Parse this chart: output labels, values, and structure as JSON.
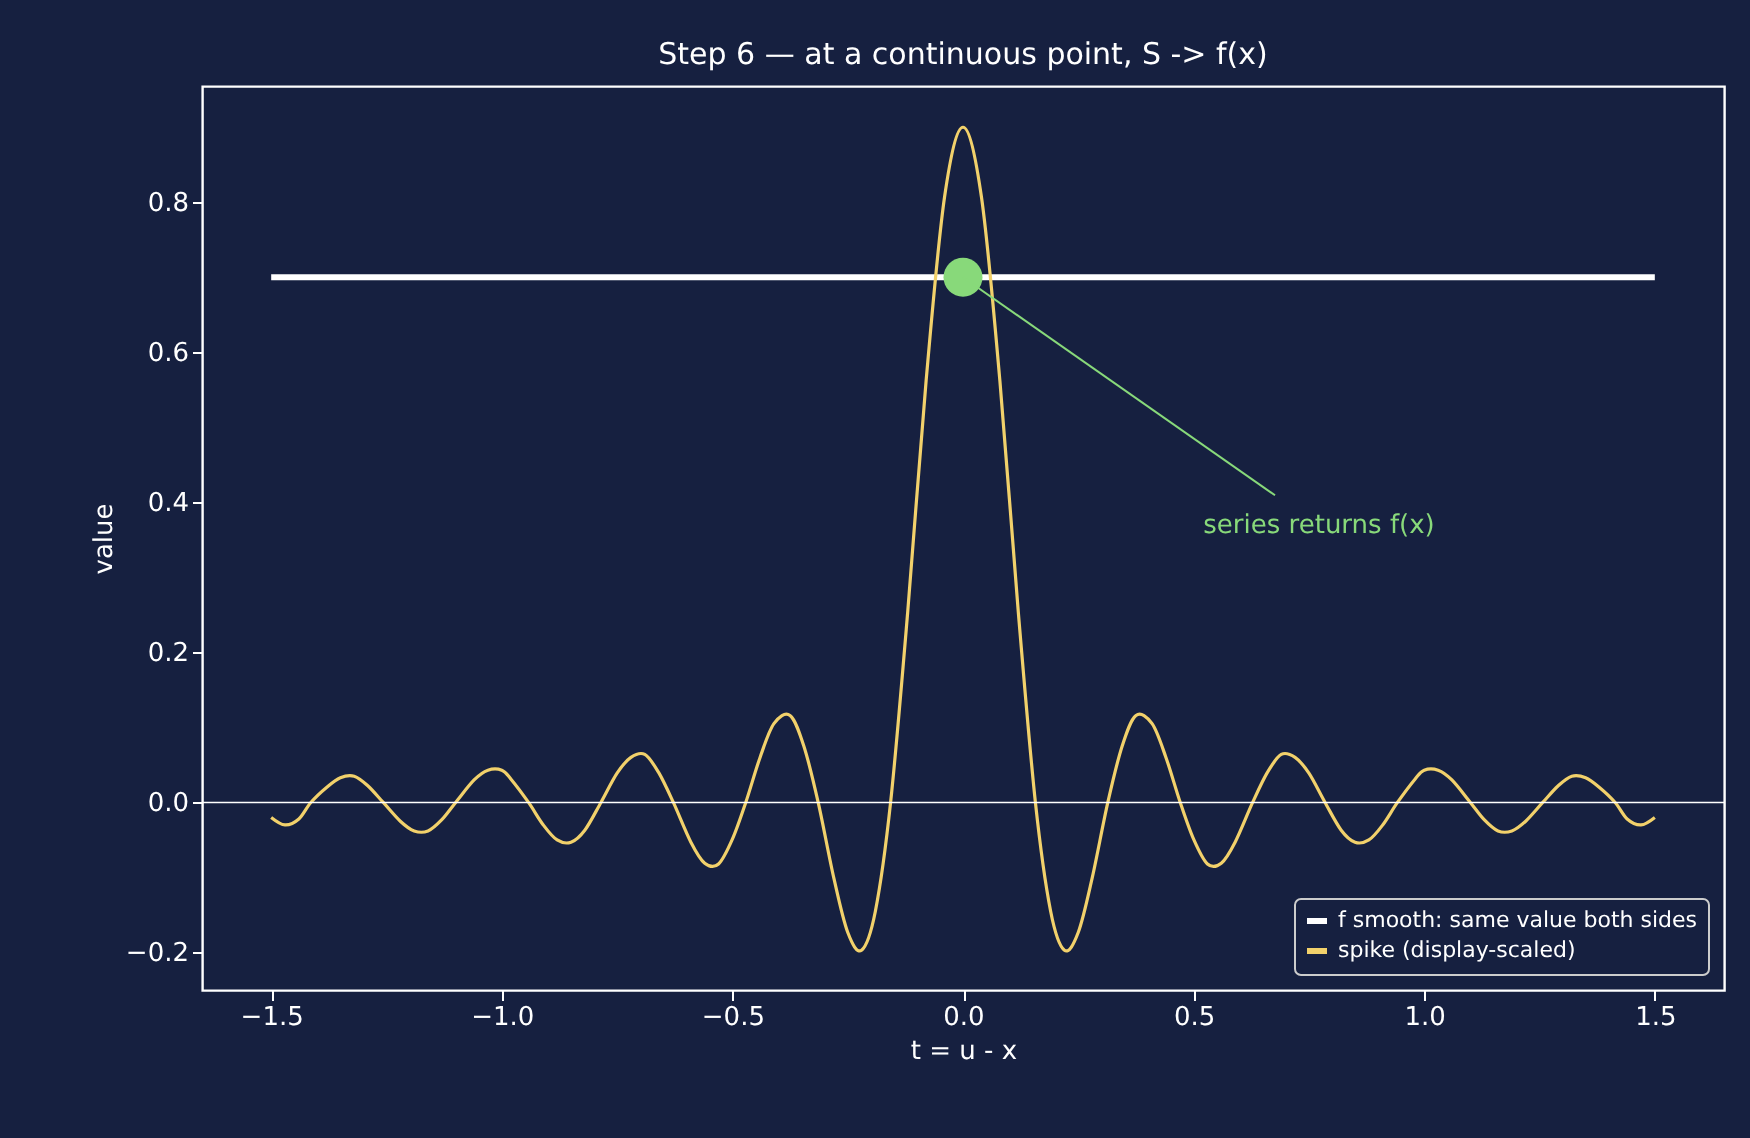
{
  "chart_data": {
    "type": "line",
    "title": "Step 6 — at a continuous point, S -> f(x)",
    "xlabel": "t = u - x",
    "ylabel": "value",
    "xlim": [
      -1.65,
      1.65
    ],
    "ylim": [
      -0.25,
      0.955
    ],
    "xticks": [
      {
        "value": -1.5,
        "label": "−1.5"
      },
      {
        "value": -1.0,
        "label": "−1.0"
      },
      {
        "value": -0.5,
        "label": "−0.5"
      },
      {
        "value": 0,
        "label": "0.0"
      },
      0.5,
      {
        "value": 1,
        "label": "1.0"
      },
      1.5
    ],
    "yticks": [
      {
        "value": -0.2,
        "label": "−0.2"
      },
      {
        "value": 0,
        "label": "0.0"
      },
      0.2,
      0.4,
      0.6,
      0.8
    ],
    "grid": false,
    "legend": "bottom right",
    "line_style": "solid",
    "ref_lines": [
      {
        "axis": "y",
        "value": 0,
        "color": "#ffffff"
      }
    ],
    "annotations": [
      {
        "text": "series returns f(x)",
        "x": 0,
        "y": 0.7
      }
    ],
    "series": [
      {
        "name": "f smooth: same value both sides",
        "type": "line",
        "color": "#ffffff",
        "x": [
          -1.5,
          1.5
        ],
        "values": [
          0.7,
          0.7
        ]
      },
      {
        "name": "spike (display-scaled)",
        "type": "line",
        "color": "#f2d16b",
        "x": [
          -1.5,
          -1.47,
          -1.44,
          -1.414,
          -1.38,
          -1.35,
          -1.32,
          -1.29,
          -1.257,
          -1.22,
          -1.19,
          -1.16,
          -1.13,
          -1.1,
          -1.06,
          -1.03,
          -1.0,
          -0.98,
          -0.942,
          -0.91,
          -0.88,
          -0.85,
          -0.82,
          -0.785,
          -0.75,
          -0.72,
          -0.69,
          -0.66,
          -0.628,
          -0.59,
          -0.56,
          -0.53,
          -0.5,
          -0.471,
          -0.44,
          -0.41,
          -0.375,
          -0.345,
          -0.314,
          -0.28,
          -0.25,
          -0.22,
          -0.19,
          -0.157,
          -0.12,
          -0.08,
          -0.04,
          0,
          0.04,
          0.08,
          0.12,
          0.157,
          0.19,
          0.22,
          0.25,
          0.28,
          0.314,
          0.345,
          0.375,
          0.41,
          0.44,
          0.471,
          0.5,
          0.53,
          0.56,
          0.59,
          0.628,
          0.66,
          0.69,
          0.72,
          0.75,
          0.785,
          0.82,
          0.85,
          0.88,
          0.91,
          0.942,
          0.98,
          1.0,
          1.03,
          1.06,
          1.1,
          1.13,
          1.16,
          1.19,
          1.22,
          1.257,
          1.29,
          1.32,
          1.35,
          1.38,
          1.414,
          1.44,
          1.47,
          1.5
        ],
        "values": [
          -0.02,
          -0.03,
          -0.022,
          0,
          0.02,
          0.033,
          0.035,
          0.022,
          0,
          -0.025,
          -0.038,
          -0.038,
          -0.023,
          0,
          0.03,
          0.043,
          0.043,
          0.031,
          0,
          -0.03,
          -0.05,
          -0.053,
          -0.037,
          0,
          0.039,
          0.06,
          0.064,
          0.04,
          0,
          -0.053,
          -0.081,
          -0.082,
          -0.049,
          0,
          0.06,
          0.105,
          0.116,
          0.075,
          0,
          -0.101,
          -0.173,
          -0.197,
          -0.145,
          0,
          0.253,
          0.562,
          0.807,
          0.9,
          0.807,
          0.562,
          0.253,
          0,
          -0.145,
          -0.197,
          -0.173,
          -0.101,
          0,
          0.075,
          0.116,
          0.105,
          0.06,
          0,
          -0.049,
          -0.082,
          -0.081,
          -0.053,
          0,
          0.04,
          0.064,
          0.06,
          0.039,
          0,
          -0.037,
          -0.053,
          -0.05,
          -0.03,
          0,
          0.031,
          0.043,
          0.043,
          0.03,
          0,
          -0.023,
          -0.038,
          -0.038,
          -0.025,
          0,
          0.022,
          0.035,
          0.033,
          0.02,
          0,
          -0.022,
          -0.03,
          -0.02
        ]
      },
      {
        "type": "scatter",
        "color": "#88d97a",
        "marker": "circle",
        "x": [
          0
        ],
        "values": [
          0.7
        ]
      }
    ]
  }
}
